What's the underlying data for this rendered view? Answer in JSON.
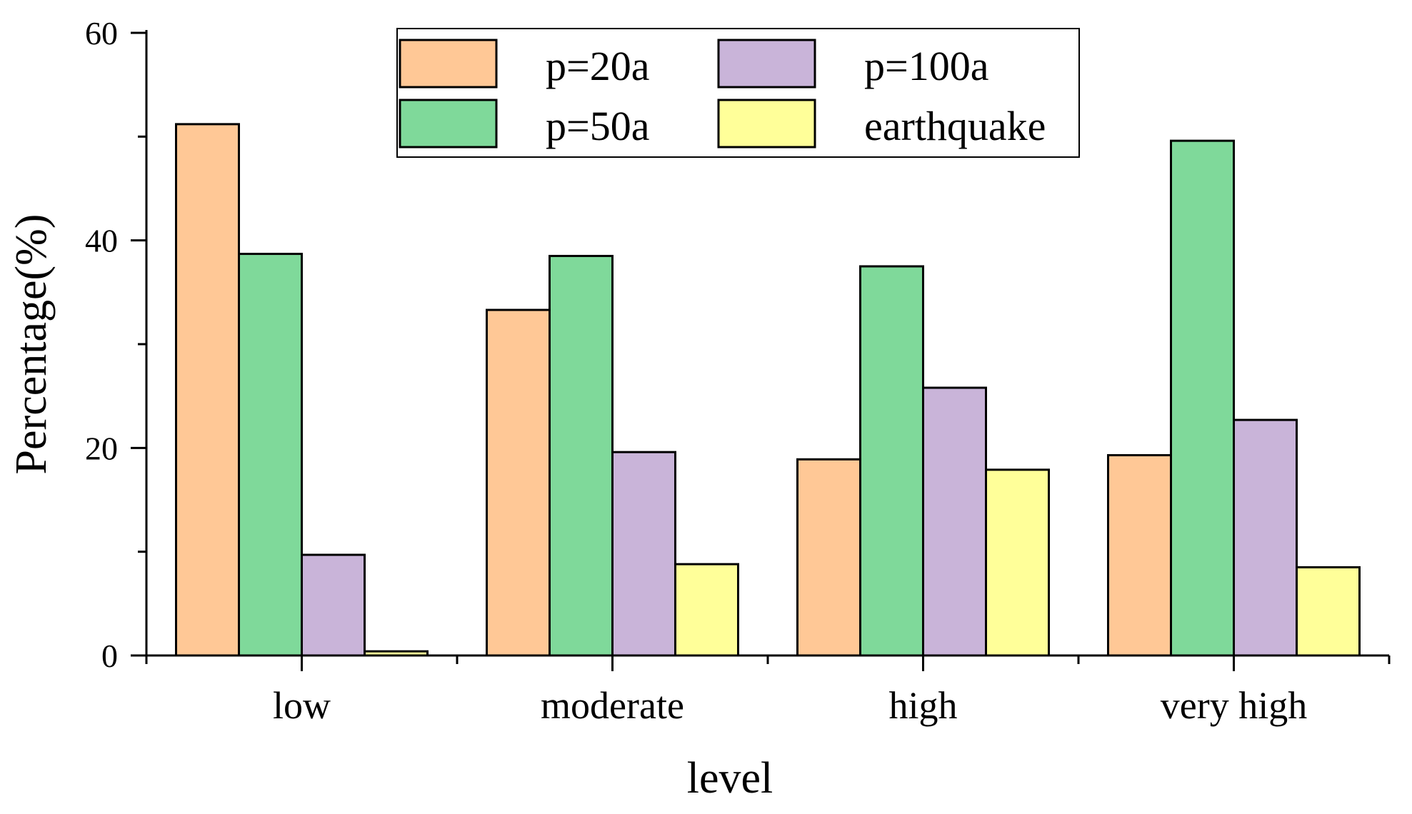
{
  "chart_data": {
    "type": "bar",
    "title": "",
    "xlabel": "level",
    "ylabel": "Percentage(%)",
    "categories": [
      "low",
      "moderate",
      "high",
      "very high"
    ],
    "ylim": [
      0,
      60
    ],
    "y_major_ticks": [
      0,
      20,
      40,
      60
    ],
    "y_minor_ticks": [
      10,
      30,
      50
    ],
    "grid": false,
    "legend_position": "top-center",
    "series": [
      {
        "name": "p=20a",
        "color": "#FFC896",
        "values": [
          51.2,
          33.3,
          18.9,
          19.3
        ]
      },
      {
        "name": "p=50a",
        "color": "#7FD99A",
        "values": [
          38.7,
          38.5,
          37.5,
          49.6
        ]
      },
      {
        "name": "p=100a",
        "color": "#C9B4D9",
        "values": [
          9.7,
          19.6,
          25.8,
          22.7
        ]
      },
      {
        "name": "earthquake",
        "color": "#FFFF99",
        "values": [
          0.4,
          8.8,
          17.9,
          8.5
        ]
      }
    ]
  }
}
